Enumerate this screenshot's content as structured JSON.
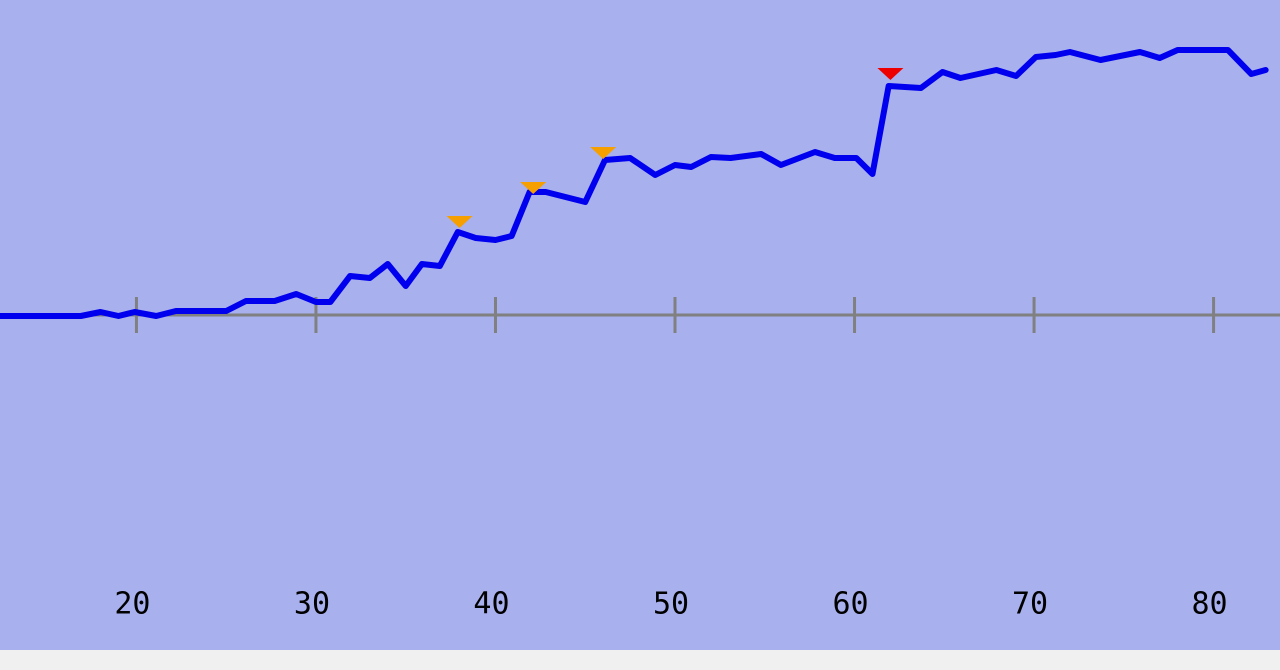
{
  "chart_data": {
    "type": "line",
    "x": [
      12.4,
      16.9,
      18.0,
      19.0,
      19.9,
      21.1,
      22.2,
      25.0,
      26.1,
      27.7,
      28.9,
      30.0,
      30.8,
      31.9,
      33.0,
      34.0,
      35.0,
      35.9,
      36.9,
      37.9,
      38.9,
      40.0,
      40.9,
      41.9,
      42.8,
      45.0,
      46.1,
      47.5,
      48.9,
      50.0,
      50.9,
      52.0,
      53.1,
      54.8,
      55.9,
      57.8,
      58.9,
      60.1,
      61.0,
      61.9,
      63.7,
      64.9,
      65.9,
      67.9,
      69.0,
      70.1,
      71.2,
      72.0,
      73.7,
      75.9,
      77.0,
      78.0,
      80.8,
      82.1,
      82.9
    ],
    "values": [
      -0.1,
      -0.1,
      0.3,
      -0.1,
      0.3,
      -0.1,
      0.4,
      0.4,
      1.4,
      1.4,
      2.1,
      1.3,
      1.3,
      3.9,
      3.7,
      5.1,
      2.9,
      5.1,
      4.9,
      8.3,
      7.7,
      7.5,
      7.9,
      12.3,
      12.3,
      11.3,
      15.5,
      15.7,
      14.0,
      15.0,
      14.8,
      15.8,
      15.7,
      16.1,
      15.0,
      16.3,
      15.7,
      15.7,
      14.1,
      22.9,
      22.7,
      24.3,
      23.7,
      24.5,
      23.9,
      25.8,
      26.0,
      26.3,
      25.5,
      26.3,
      25.7,
      26.5,
      26.5,
      24.1,
      24.5
    ],
    "color": "#0000ee",
    "markers": [
      {
        "x": 38.0,
        "y": 9.3,
        "color": "#f5a000"
      },
      {
        "x": 42.1,
        "y": 12.7,
        "color": "#f5a000"
      },
      {
        "x": 46.0,
        "y": 16.2,
        "color": "#f5a000"
      },
      {
        "x": 62.0,
        "y": 24.1,
        "color": "#ee0000"
      }
    ],
    "xlim": [
      12.4,
      83.7
    ],
    "ylim": [
      -33.5,
      31.5
    ],
    "xticks": [
      20,
      30,
      40,
      50,
      60,
      70,
      80
    ]
  }
}
